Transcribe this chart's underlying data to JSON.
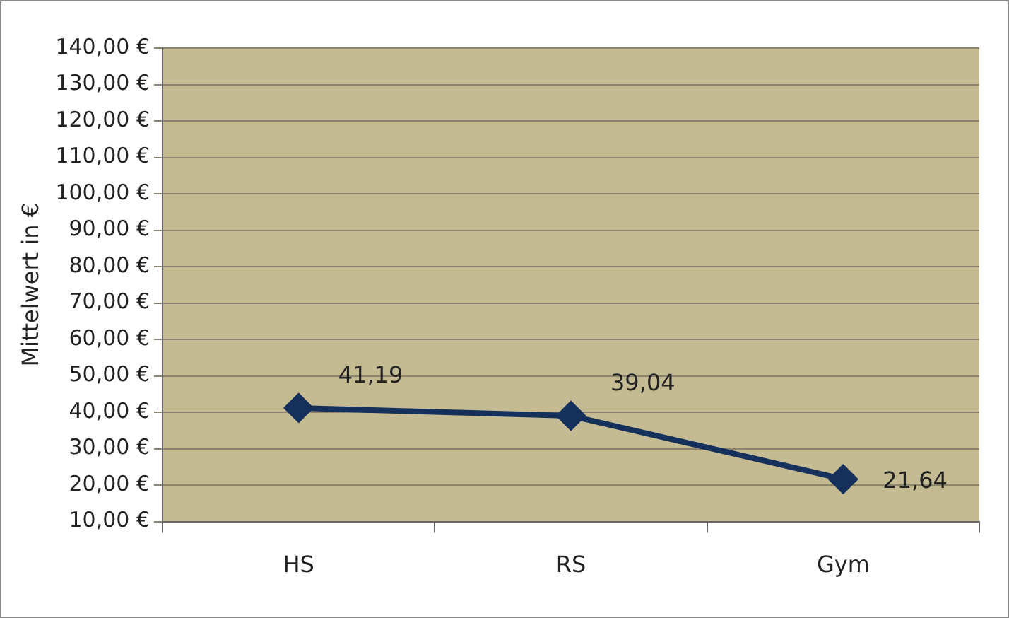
{
  "chart_data": {
    "type": "line",
    "ylabel": "Mittelwert in €",
    "categories": [
      "HS",
      "RS",
      "Gym"
    ],
    "series": [
      {
        "color": "#15305a",
        "values": [
          41.19,
          39.04,
          21.64
        ],
        "value_labels": [
          "41,19",
          "39,04",
          "21,64"
        ]
      }
    ],
    "ylim": [
      10,
      140
    ],
    "yticks": [
      {
        "value": 10,
        "label": "10,00 €"
      },
      {
        "value": 20,
        "label": "20,00 €"
      },
      {
        "value": 30,
        "label": "30,00 €"
      },
      {
        "value": 40,
        "label": "40,00 €"
      },
      {
        "value": 50,
        "label": "50,00 €"
      },
      {
        "value": 60,
        "label": "60,00 €"
      },
      {
        "value": 70,
        "label": "70,00 €"
      },
      {
        "value": 80,
        "label": "80,00 €"
      },
      {
        "value": 90,
        "label": "90,00 €"
      },
      {
        "value": 100,
        "label": "100,00 €"
      },
      {
        "value": 110,
        "label": "110,00 €"
      },
      {
        "value": 120,
        "label": "120,00 €"
      },
      {
        "value": 130,
        "label": "130,00 €"
      },
      {
        "value": 140,
        "label": "140,00 €"
      }
    ],
    "grid": "y",
    "legend": false,
    "marker": "diamond",
    "line_style": "solid"
  }
}
